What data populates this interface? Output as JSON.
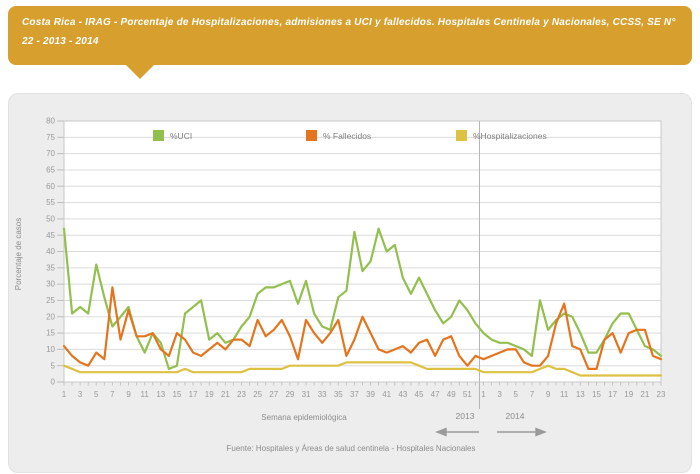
{
  "header": {
    "title": "Costa Rica - IRAG - Porcentaje de Hospitalizaciones, admisiones a UCI y fallecidos. Hospitales Centinela y Nacionales, CCSS, SE N° 22 - 2013 - 2014",
    "banner_color": "#d7a02e"
  },
  "footer": {
    "source": "Fuente: Hospitales y Áreas de salud centinela - Hospitales Nacionales"
  },
  "chart_data": {
    "type": "line",
    "title": "",
    "ylabel": "Porcentaje de casos",
    "xlabel": "Semana epidemiológica",
    "ylim": [
      0,
      80
    ],
    "yticks": [
      0,
      5,
      10,
      15,
      20,
      25,
      30,
      35,
      40,
      45,
      50,
      55,
      60,
      65,
      70,
      75,
      80
    ],
    "grid": "horizontal",
    "legend_position": "top-inside",
    "x_groups": [
      {
        "year": "2013",
        "weeks": 52,
        "tick_labels": [
          1,
          3,
          5,
          7,
          9,
          11,
          13,
          15,
          17,
          19,
          21,
          23,
          25,
          27,
          29,
          31,
          33,
          35,
          37,
          39,
          41,
          43,
          45,
          47,
          49,
          51
        ]
      },
      {
        "year": "2014",
        "weeks": 23,
        "tick_labels": [
          1,
          3,
          5,
          7,
          9,
          11,
          13,
          15,
          17,
          19,
          21,
          23
        ]
      }
    ],
    "series": [
      {
        "name": "%UCI",
        "color": "#92bf4e",
        "values": [
          47,
          21,
          23,
          21,
          36,
          26,
          17,
          20,
          23,
          14,
          9,
          15,
          12,
          4,
          5,
          21,
          23,
          25,
          13,
          15,
          12,
          13,
          17,
          20,
          27,
          29,
          29,
          30,
          31,
          24,
          31,
          21,
          17,
          16,
          26,
          28,
          46,
          34,
          37,
          47,
          40,
          42,
          32,
          27,
          32,
          27,
          22,
          18,
          20,
          25,
          22,
          18,
          15,
          13,
          12,
          12,
          11,
          10,
          8,
          25,
          16,
          19,
          21,
          20,
          15,
          9,
          9,
          13,
          18,
          21,
          21,
          16,
          11,
          10,
          8
        ]
      },
      {
        "name": "% Fallecidos",
        "color": "#e5741e",
        "values": [
          11,
          8,
          6,
          5,
          9,
          7,
          29,
          13,
          22,
          14,
          14,
          15,
          10,
          8,
          15,
          13,
          9,
          8,
          10,
          12,
          10,
          13,
          13,
          11,
          19,
          14,
          16,
          19,
          14,
          7,
          19,
          15,
          12,
          15,
          19,
          8,
          13,
          20,
          15,
          10,
          9,
          10,
          11,
          9,
          12,
          13,
          8,
          13,
          14,
          8,
          5,
          8,
          7,
          8,
          9,
          10,
          10,
          6,
          5,
          5,
          8,
          18,
          24,
          11,
          10,
          4,
          4,
          13,
          15,
          9,
          15,
          16,
          16,
          8,
          7
        ]
      },
      {
        "name": "%Hospitalizaciones",
        "color": "#ddc142",
        "values": [
          5,
          4,
          3,
          3,
          3,
          3,
          3,
          3,
          3,
          3,
          3,
          3,
          3,
          3,
          3,
          4,
          3,
          3,
          3,
          3,
          3,
          3,
          3,
          4,
          4,
          4,
          4,
          4,
          5,
          5,
          5,
          5,
          5,
          5,
          5,
          6,
          6,
          6,
          6,
          6,
          6,
          6,
          6,
          6,
          5,
          4,
          4,
          4,
          4,
          4,
          4,
          4,
          3,
          3,
          3,
          3,
          3,
          3,
          3,
          4,
          5,
          4,
          4,
          3,
          2,
          2,
          2,
          2,
          2,
          2,
          2,
          2,
          2,
          2,
          2
        ]
      }
    ]
  }
}
